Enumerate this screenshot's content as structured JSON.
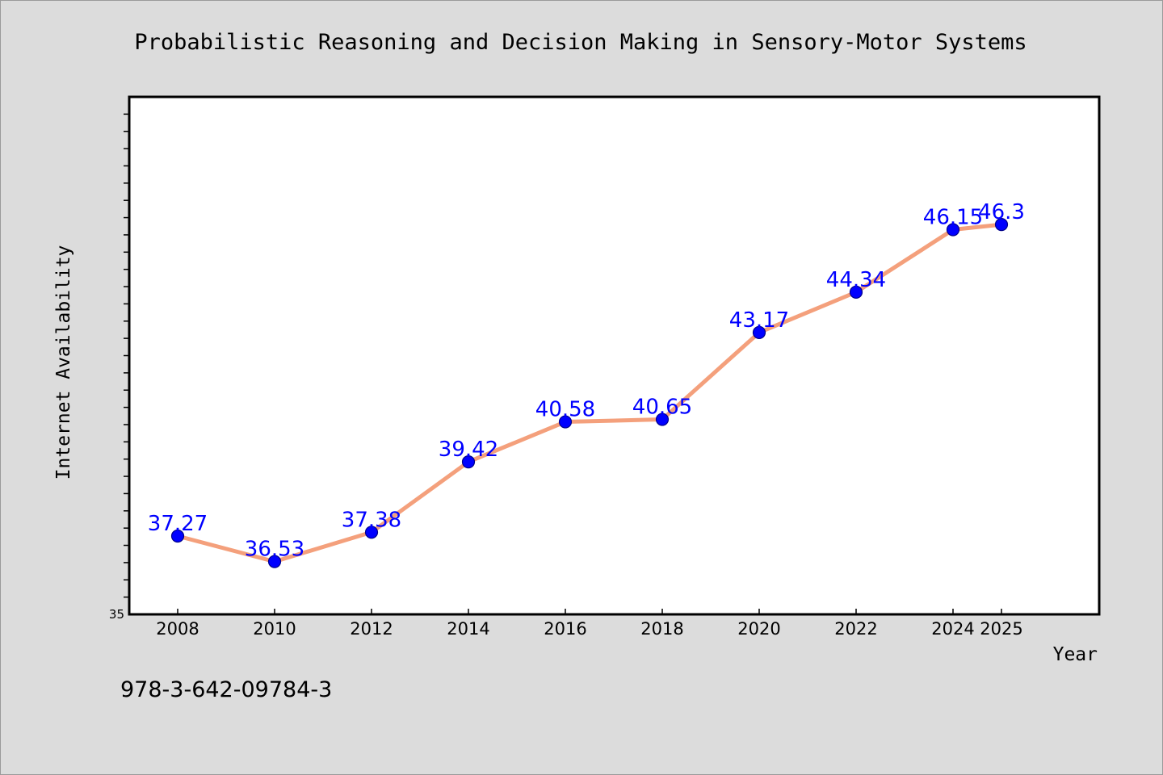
{
  "figure": {
    "footer_text": "978-3-642-09784-3"
  },
  "chart_data": {
    "type": "line",
    "title": "Probabilistic Reasoning and Decision Making in Sensory-Motor Systems",
    "xlabel": "Year",
    "ylabel": "Internet Availability",
    "categories": [
      "2008",
      "2010",
      "2012",
      "2014",
      "2016",
      "2018",
      "2020",
      "2022",
      "2024",
      "2025"
    ],
    "values": [
      37.27,
      36.53,
      37.38,
      39.42,
      40.58,
      40.65,
      43.17,
      44.34,
      46.15,
      46.3
    ],
    "data_labels": [
      "37.27",
      "36.53",
      "37.38",
      "39.42",
      "40.58",
      "40.65",
      "43.17",
      "44.34",
      "46.15",
      "46.3"
    ],
    "ylim": [
      35,
      50
    ],
    "y_tick_labels": [
      "35"
    ],
    "grid": false,
    "legend": "none",
    "colors": {
      "line": "#f4a07c",
      "marker": "#0000ff",
      "marker_edge": "#00008b",
      "data_label": "#0000ff",
      "plot_background": "#ffffff",
      "figure_background": "#dcdcdc"
    }
  }
}
